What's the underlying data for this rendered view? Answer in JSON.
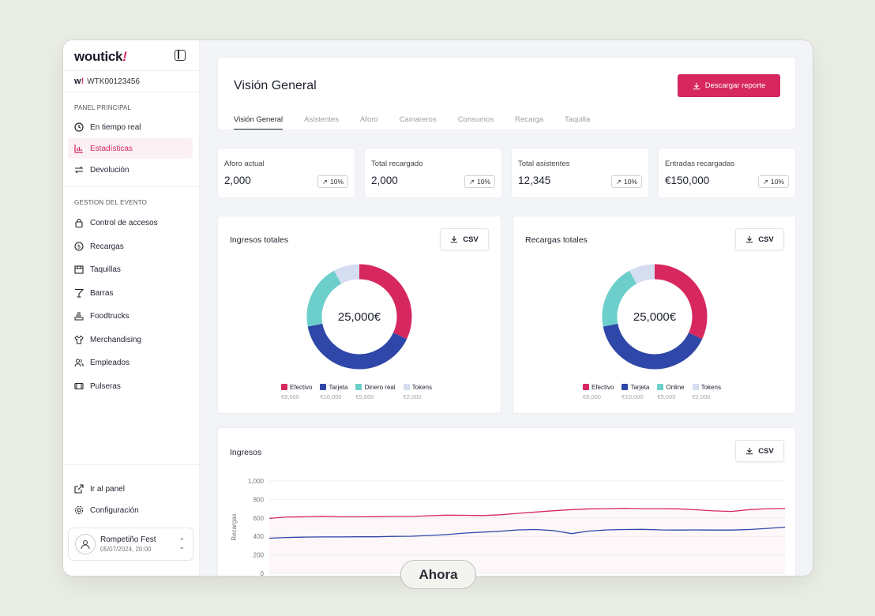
{
  "app": {
    "logo_text": "woutick",
    "org_code": "WTK00123456"
  },
  "sidebar": {
    "section_main": "PANEL PRINCIPAL",
    "section_event": "GESTION DEL EVENTO",
    "items_main": [
      {
        "label": "En tiempo real",
        "icon": "clock-icon"
      },
      {
        "label": "Estadísticas",
        "icon": "bar-chart-icon"
      },
      {
        "label": "Devolución",
        "icon": "swap-icon"
      }
    ],
    "items_event": [
      {
        "label": "Control de accesos",
        "icon": "lock-icon"
      },
      {
        "label": "Recargas",
        "icon": "coin-icon"
      },
      {
        "label": "Taquillas",
        "icon": "store-icon"
      },
      {
        "label": "Barras",
        "icon": "cocktail-icon"
      },
      {
        "label": "Foodtrucks",
        "icon": "truck-icon"
      },
      {
        "label": "Merchandising",
        "icon": "shirt-icon"
      },
      {
        "label": "Empleados",
        "icon": "users-icon"
      },
      {
        "label": "Pulseras",
        "icon": "wristband-icon"
      }
    ],
    "footer_items": [
      {
        "label": "Ir al panel",
        "icon": "external-link-icon"
      },
      {
        "label": "Configuración",
        "icon": "gear-icon"
      }
    ],
    "event": {
      "name": "Rompetiño Fest",
      "date": "05/07/2024, 20:00"
    }
  },
  "header": {
    "title": "Visión General",
    "download_label": "Descargar reporte",
    "tabs": [
      "Visión General",
      "Asistentes",
      "Aforo",
      "Camareros",
      "Consumos",
      "Recarga",
      "Taquilla"
    ]
  },
  "stats": [
    {
      "label": "Aforo actual",
      "value": "2,000",
      "badge": "10%"
    },
    {
      "label": "Total recargado",
      "value": "2,000",
      "badge": "10%"
    },
    {
      "label": "Total asistentes",
      "value": "12,345",
      "badge": "10%"
    },
    {
      "label": "Entradas recargadas",
      "value": "€150,000",
      "badge": "10%"
    }
  ],
  "colors": {
    "accent": "#d6285f",
    "efectivo": "#d6285f",
    "tarjeta": "#2f47a8",
    "online": "#6ccfcb",
    "tokens": "#d5ddf0"
  },
  "csv_label": "CSV",
  "chart_data": [
    {
      "type": "pie",
      "title": "Ingresos totales",
      "center_label": "25,000€",
      "categories": [
        "Efectivo",
        "Tarjeta",
        "Dinero real",
        "Tokens"
      ],
      "values": [
        8000,
        10000,
        5000,
        2000
      ],
      "value_labels": [
        "€8,000",
        "€10,000",
        "€5,000",
        "€2,000"
      ]
    },
    {
      "type": "pie",
      "title": "Recargas totales",
      "center_label": "25,000€",
      "categories": [
        "Efectivo",
        "Tarjeta",
        "Online",
        "Tokens"
      ],
      "values": [
        8000,
        10000,
        5000,
        2000
      ],
      "value_labels": [
        "€8,000",
        "€10,000",
        "€5,000",
        "€2,000"
      ]
    },
    {
      "type": "line",
      "title": "Ingresos",
      "ylabel": "Recargas",
      "ylim": [
        0,
        1000
      ],
      "yticks": [
        "0",
        "200",
        "400",
        "600",
        "800",
        "1,000"
      ],
      "x": [
        0,
        1,
        2,
        3,
        4,
        5,
        6,
        7,
        8,
        9,
        10,
        11,
        12,
        13,
        14,
        15,
        16,
        17,
        18,
        19,
        20,
        21,
        22,
        23,
        24,
        25,
        26,
        27,
        28,
        29
      ],
      "series": [
        {
          "values": [
            595,
            610,
            612,
            618,
            612,
            612,
            614,
            616,
            616,
            624,
            630,
            628,
            626,
            634,
            650,
            664,
            678,
            690,
            698,
            700,
            704,
            700,
            700,
            698,
            688,
            676,
            670,
            690,
            700,
            702
          ]
        },
        {
          "values": [
            380,
            388,
            392,
            394,
            394,
            396,
            396,
            400,
            402,
            410,
            420,
            436,
            446,
            456,
            470,
            474,
            462,
            430,
            458,
            470,
            474,
            476,
            470,
            468,
            470,
            468,
            468,
            474,
            486,
            500
          ]
        }
      ]
    }
  ],
  "overlay": {
    "label": "Ahora"
  }
}
